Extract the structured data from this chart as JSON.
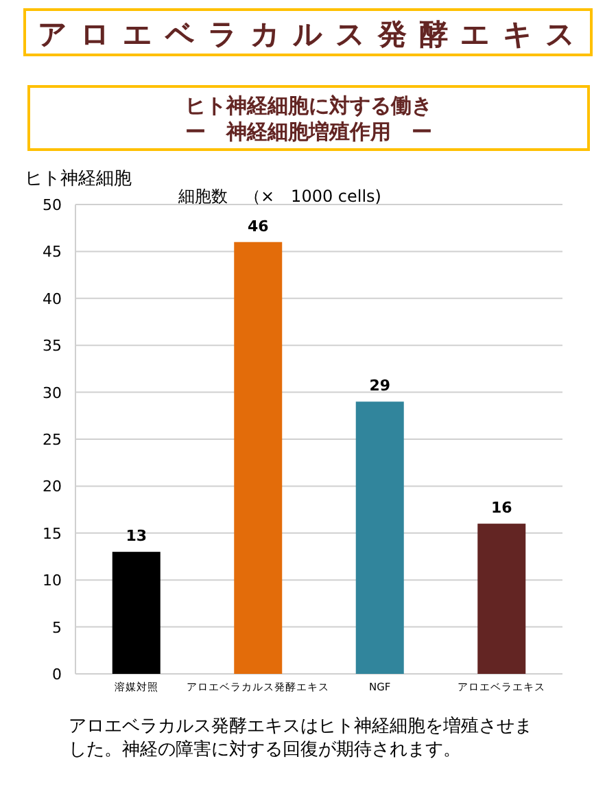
{
  "chart_data": {
    "type": "bar",
    "title": "アロエベラカルス発酵エキス",
    "subtitle": "ヒト神経細胞に対する働き",
    "ylabel": "ヒト神経細胞",
    "annotations": [
      "ー　神経細胞増殖作用　ー",
      "細胞数　（×　1000 cells)",
      "アロエベラカルス発酵エキスはヒト神経細胞を増殖させました。神経の障害に対する回復が期待されます。"
    ],
    "categories": [
      "溶媒対照",
      "アロエベラカルス発酵エキス",
      "NGF",
      "アロエベラエキス"
    ],
    "values": [
      13,
      46,
      29,
      16
    ],
    "colors": [
      "#000000",
      "#e36c0a",
      "#31859c",
      "#632523"
    ],
    "ylim": [
      0,
      50
    ],
    "yticks": [
      0,
      5,
      10,
      15,
      20,
      25,
      30,
      35,
      40,
      45,
      50
    ],
    "grid": "y",
    "data_labels": true
  }
}
